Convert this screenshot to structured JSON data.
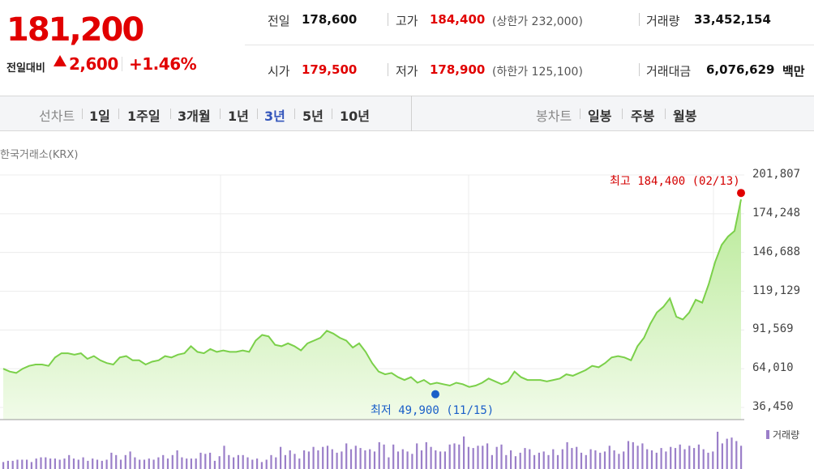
{
  "header": {
    "price": "181,200",
    "change_label": "전일대비",
    "change_value": "2,600",
    "change_pct": "+1.46%",
    "prev_close_label": "전일",
    "prev_close": "178,600",
    "open_label": "시가",
    "open": "179,500",
    "high_label": "고가",
    "high": "184,400",
    "upper_limit": "(상한가 232,000)",
    "low_label": "저가",
    "low": "178,900",
    "lower_limit": "(하한가 125,100)",
    "volume_label": "거래량",
    "volume": "33,452,154",
    "amount_label": "거래대금",
    "amount": "6,076,629",
    "amount_unit": "백만"
  },
  "tabs": {
    "line_group": "선차트",
    "line_tabs": [
      "1일",
      "1주일",
      "3개월",
      "1년",
      "3년",
      "5년",
      "10년"
    ],
    "active_line_tab": "3년",
    "candle_group": "봉차트",
    "candle_tabs": [
      "일봉",
      "주봉",
      "월봉"
    ]
  },
  "source": "한국거래소(KRX)",
  "colors": {
    "up": "#e10000",
    "down": "#1a5fc8",
    "line": "#7bd04a",
    "fill": "#d6f3c2",
    "volume": "#9b7fc9",
    "active_tab": "#3355bb"
  },
  "chart_data": {
    "type": "area",
    "y_ticks": [
      "201,807",
      "174,248",
      "146,688",
      "119,129",
      "91,569",
      "64,010",
      "36,450"
    ],
    "ylim": [
      36450,
      201807
    ],
    "grid": true,
    "annotations": {
      "high": {
        "text": "최고 184,400 (02/13)",
        "value": 184400
      },
      "low": {
        "text": "최저 49,900 (11/15)",
        "value": 49900
      }
    },
    "price_series": [
      64000,
      62000,
      61000,
      64000,
      66000,
      67000,
      67000,
      66000,
      72000,
      75000,
      75000,
      74000,
      75000,
      71000,
      73000,
      70000,
      68000,
      67000,
      72000,
      73000,
      70000,
      70000,
      67000,
      69000,
      70000,
      73000,
      72000,
      74000,
      75000,
      80000,
      76000,
      75000,
      78000,
      76000,
      77000,
      76000,
      76000,
      77000,
      76000,
      84000,
      88000,
      87000,
      81000,
      80000,
      82000,
      80000,
      77000,
      82000,
      84000,
      86000,
      91000,
      89000,
      86000,
      84000,
      79000,
      82000,
      76000,
      68000,
      62000,
      60000,
      61000,
      58000,
      56000,
      58000,
      54000,
      56000,
      53000,
      54000,
      53000,
      52000,
      54000,
      53000,
      51000,
      52000,
      54000,
      57000,
      55000,
      53000,
      55000,
      62000,
      58000,
      56000,
      56000,
      56000,
      55000,
      56000,
      57000,
      60000,
      59000,
      61000,
      63000,
      66000,
      65000,
      68000,
      72000,
      73000,
      72000,
      70000,
      80000,
      86000,
      96000,
      104000,
      108000,
      114000,
      101000,
      99000,
      104000,
      113000,
      111000,
      124000,
      140000,
      152000,
      158000,
      162000,
      184400
    ],
    "volume_legend": "거래량",
    "volume_bars": [
      6,
      7,
      7,
      8,
      8,
      8,
      6,
      9,
      10,
      10,
      9,
      9,
      8,
      9,
      12,
      9,
      8,
      10,
      7,
      9,
      8,
      7,
      8,
      14,
      12,
      8,
      12,
      15,
      10,
      8,
      8,
      9,
      8,
      10,
      12,
      9,
      12,
      16,
      10,
      9,
      9,
      9,
      14,
      13,
      14,
      7,
      11,
      20,
      12,
      10,
      12,
      12,
      10,
      8,
      9,
      6,
      8,
      12,
      10,
      19,
      12,
      16,
      13,
      9,
      16,
      15,
      19,
      16,
      19,
      20,
      17,
      14,
      15,
      22,
      17,
      20,
      18,
      16,
      17,
      15,
      23,
      21,
      10,
      21,
      15,
      17,
      15,
      13,
      22,
      16,
      23,
      19,
      16,
      15,
      15,
      21,
      22,
      21,
      28,
      19,
      18,
      20,
      20,
      22,
      12,
      19,
      21,
      12,
      16,
      11,
      14,
      18,
      17,
      12,
      14,
      15,
      12,
      17,
      12,
      17,
      23,
      18,
      19,
      14,
      12,
      17,
      16,
      14,
      15,
      20,
      16,
      13,
      15,
      24,
      23,
      20,
      22,
      17,
      16,
      14,
      18,
      15,
      19,
      18,
      21,
      17,
      20,
      18,
      21,
      17,
      14,
      15,
      32,
      22,
      26,
      27,
      24,
      20
    ]
  }
}
